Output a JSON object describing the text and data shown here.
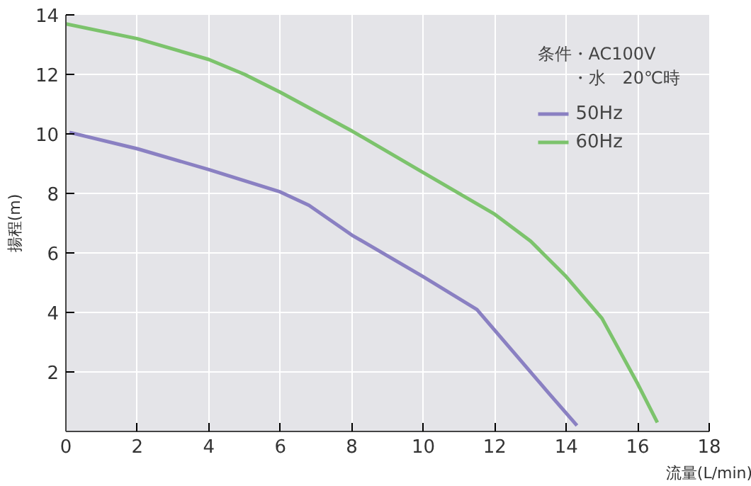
{
  "chart_data": {
    "type": "line",
    "xlabel": "流量(L/min)",
    "ylabel": "揚程(m)",
    "xlim": [
      0,
      18
    ],
    "ylim": [
      0,
      14
    ],
    "xticks": [
      0,
      2,
      4,
      6,
      8,
      10,
      12,
      14,
      16,
      18
    ],
    "yticks": [
      2,
      4,
      6,
      8,
      10,
      12,
      14
    ],
    "grid": true,
    "legend": "top right",
    "legend_title": "条件・AC100V\n　　・水　20℃時",
    "series": [
      {
        "name": "50Hz",
        "color": "#8a80c2",
        "x": [
          0.1,
          2,
          4,
          6,
          6.8,
          8,
          10,
          11.5,
          12.5,
          13.5,
          14.3
        ],
        "values": [
          10.05,
          9.5,
          8.8,
          8.05,
          7.6,
          6.6,
          5.2,
          4.1,
          2.7,
          1.3,
          0.2
        ]
      },
      {
        "name": "60Hz",
        "color": "#7cc36c",
        "x": [
          0,
          2,
          4,
          5,
          6,
          8,
          10,
          12,
          13,
          14,
          15,
          15.5,
          16,
          16.55
        ],
        "values": [
          13.7,
          13.2,
          12.5,
          12.0,
          11.4,
          10.1,
          8.7,
          7.3,
          6.4,
          5.2,
          3.8,
          2.7,
          1.6,
          0.3
        ]
      }
    ]
  }
}
